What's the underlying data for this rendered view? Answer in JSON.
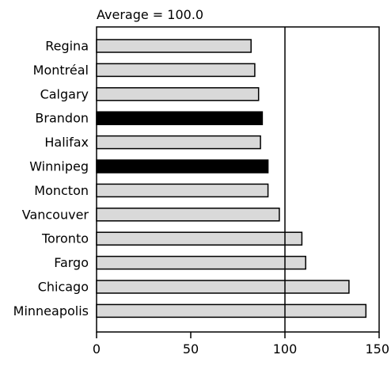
{
  "chart_data": {
    "type": "bar",
    "orientation": "horizontal",
    "annotation": "Average = 100.0",
    "reference_line": 100,
    "categories": [
      "Regina",
      "Montréal",
      "Calgary",
      "Brandon",
      "Halifax",
      "Winnipeg",
      "Moncton",
      "Vancouver",
      "Toronto",
      "Fargo",
      "Chicago",
      "Minneapolis"
    ],
    "values": [
      82,
      84,
      86,
      88,
      87,
      91,
      91,
      97,
      109,
      111,
      134,
      143
    ],
    "highlighted": [
      "Brandon",
      "Winnipeg"
    ],
    "xlim": [
      0,
      150
    ],
    "x_ticks": [
      0,
      50,
      100,
      150
    ],
    "grid": false,
    "colors": {
      "bar": "#d9d9d9",
      "highlight": "#000000",
      "outline": "#000000"
    }
  }
}
